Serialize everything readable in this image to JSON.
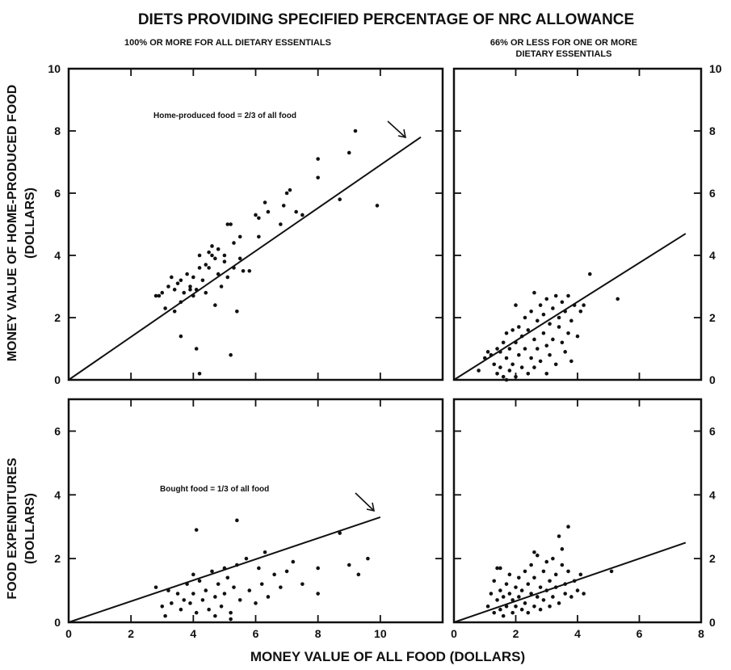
{
  "chart_data": {
    "type": "scatter",
    "title": "DIETS PROVIDING SPECIFIED PERCENTAGE OF NRC ALLOWANCE",
    "column_titles": [
      "100% OR MORE FOR ALL DIETARY ESSENTIALS",
      "66% OR LESS FOR ONE OR MORE DIETARY ESSENTIALS"
    ],
    "xlabel": "MONEY VALUE OF ALL FOOD (DOLLARS)",
    "row_ylabels": [
      [
        "MONEY VALUE OF HOME-PRODUCED FOOD",
        "(DOLLARS)"
      ],
      [
        "FOOD EXPENDITURES",
        "(DOLLARS)"
      ]
    ],
    "grid": false,
    "panels": [
      {
        "id": "top-left",
        "xlim": [
          0,
          12
        ],
        "ylim": [
          0,
          10
        ],
        "x_ticks": [
          0,
          2,
          4,
          6,
          8,
          10
        ],
        "y_ticks": [
          0,
          2,
          4,
          6,
          8,
          10
        ],
        "y_tick_labels": [
          "0",
          "2",
          "4",
          "6",
          "8",
          "10"
        ],
        "line": {
          "x": [
            0,
            11.3
          ],
          "y": [
            0,
            7.8
          ]
        },
        "annotation": "Home-produced food = 2/3 of all food",
        "points": [
          [
            2.9,
            2.7
          ],
          [
            3.0,
            2.8
          ],
          [
            3.1,
            2.3
          ],
          [
            3.2,
            3.0
          ],
          [
            3.3,
            3.3
          ],
          [
            3.4,
            2.9
          ],
          [
            3.5,
            3.1
          ],
          [
            3.6,
            2.5
          ],
          [
            3.6,
            3.2
          ],
          [
            3.7,
            2.8
          ],
          [
            3.8,
            3.4
          ],
          [
            3.9,
            3.0
          ],
          [
            4.0,
            2.7
          ],
          [
            4.0,
            3.3
          ],
          [
            4.1,
            2.9
          ],
          [
            4.2,
            3.6
          ],
          [
            4.3,
            3.2
          ],
          [
            4.4,
            2.8
          ],
          [
            4.4,
            3.7
          ],
          [
            4.5,
            4.1
          ],
          [
            4.6,
            4.3
          ],
          [
            4.7,
            3.9
          ],
          [
            4.8,
            4.2
          ],
          [
            4.8,
            3.4
          ],
          [
            4.9,
            3.0
          ],
          [
            5.0,
            3.8
          ],
          [
            5.0,
            4.0
          ],
          [
            5.1,
            3.3
          ],
          [
            5.2,
            5.0
          ],
          [
            5.3,
            3.6
          ],
          [
            5.3,
            4.4
          ],
          [
            5.4,
            2.2
          ],
          [
            5.5,
            3.9
          ],
          [
            5.5,
            4.6
          ],
          [
            5.6,
            3.5
          ],
          [
            5.1,
            5.0
          ],
          [
            6.0,
            5.3
          ],
          [
            6.1,
            4.6
          ],
          [
            6.1,
            5.2
          ],
          [
            6.3,
            5.7
          ],
          [
            6.4,
            5.4
          ],
          [
            6.8,
            5.0
          ],
          [
            6.9,
            5.6
          ],
          [
            7.0,
            6.0
          ],
          [
            7.1,
            6.1
          ],
          [
            7.3,
            5.4
          ],
          [
            7.5,
            5.3
          ],
          [
            8.0,
            6.5
          ],
          [
            8.0,
            7.1
          ],
          [
            8.7,
            5.8
          ],
          [
            9.0,
            7.3
          ],
          [
            9.2,
            8.0
          ],
          [
            9.9,
            5.6
          ],
          [
            3.6,
            1.4
          ],
          [
            4.1,
            1.0
          ],
          [
            4.2,
            0.2
          ],
          [
            5.2,
            0.8
          ],
          [
            4.7,
            2.4
          ],
          [
            3.4,
            2.2
          ],
          [
            2.8,
            2.7
          ],
          [
            4.5,
            3.6
          ],
          [
            4.2,
            4.0
          ],
          [
            4.6,
            4.0
          ],
          [
            3.9,
            2.9
          ],
          [
            5.8,
            3.5
          ]
        ]
      },
      {
        "id": "top-right",
        "xlim": [
          0,
          8
        ],
        "ylim": [
          0,
          10
        ],
        "x_ticks": [
          0,
          2,
          4,
          6,
          8
        ],
        "y_ticks": [
          0,
          2,
          4,
          6,
          8,
          10
        ],
        "y_tick_labels": [
          "0",
          "2",
          "4",
          "6",
          "8",
          "10"
        ],
        "line": {
          "x": [
            0,
            7.5
          ],
          "y": [
            0,
            4.7
          ]
        },
        "points": [
          [
            0.8,
            0.3
          ],
          [
            1.2,
            0.8
          ],
          [
            1.3,
            0.5
          ],
          [
            1.4,
            0.2
          ],
          [
            1.5,
            0.9
          ],
          [
            1.5,
            0.4
          ],
          [
            1.6,
            0.1
          ],
          [
            1.6,
            1.2
          ],
          [
            1.7,
            0.7
          ],
          [
            1.7,
            1.5
          ],
          [
            1.8,
            0.3
          ],
          [
            1.8,
            1.0
          ],
          [
            1.9,
            1.6
          ],
          [
            1.9,
            0.5
          ],
          [
            2.0,
            0.1
          ],
          [
            2.0,
            1.2
          ],
          [
            2.1,
            0.8
          ],
          [
            2.1,
            1.7
          ],
          [
            2.2,
            0.4
          ],
          [
            2.2,
            1.4
          ],
          [
            2.3,
            2.0
          ],
          [
            2.3,
            1.0
          ],
          [
            2.4,
            0.2
          ],
          [
            2.4,
            1.6
          ],
          [
            2.5,
            0.7
          ],
          [
            2.5,
            2.2
          ],
          [
            2.6,
            1.3
          ],
          [
            2.6,
            0.4
          ],
          [
            2.7,
            1.9
          ],
          [
            2.7,
            1.0
          ],
          [
            2.8,
            2.4
          ],
          [
            2.8,
            0.6
          ],
          [
            2.9,
            1.5
          ],
          [
            2.9,
            2.1
          ],
          [
            3.0,
            1.1
          ],
          [
            3.0,
            2.6
          ],
          [
            3.1,
            0.8
          ],
          [
            3.1,
            1.8
          ],
          [
            3.2,
            2.3
          ],
          [
            3.2,
            1.3
          ],
          [
            3.3,
            2.7
          ],
          [
            3.3,
            0.5
          ],
          [
            3.4,
            1.7
          ],
          [
            3.4,
            2.0
          ],
          [
            3.5,
            1.2
          ],
          [
            3.5,
            2.5
          ],
          [
            3.6,
            0.9
          ],
          [
            3.6,
            2.2
          ],
          [
            3.7,
            1.5
          ],
          [
            3.7,
            2.7
          ],
          [
            3.8,
            0.6
          ],
          [
            3.8,
            1.9
          ],
          [
            3.9,
            2.4
          ],
          [
            4.0,
            1.4
          ],
          [
            4.1,
            2.2
          ],
          [
            4.2,
            2.4
          ],
          [
            4.4,
            3.4
          ],
          [
            5.3,
            2.6
          ],
          [
            1.0,
            0.7
          ],
          [
            1.1,
            0.9
          ],
          [
            1.4,
            1.0
          ],
          [
            2.0,
            2.4
          ],
          [
            2.6,
            2.8
          ],
          [
            3.0,
            0.2
          ],
          [
            1.7,
            0.0
          ]
        ]
      },
      {
        "id": "bottom-left",
        "xlim": [
          0,
          12
        ],
        "ylim": [
          0,
          7
        ],
        "x_ticks": [
          0,
          2,
          4,
          6,
          8,
          10
        ],
        "x_tick_labels": [
          "0",
          "2",
          "4",
          "6",
          "8",
          "10"
        ],
        "y_ticks": [
          0,
          2,
          4,
          6
        ],
        "y_tick_labels": [
          "0",
          "2",
          "4",
          "6"
        ],
        "line": {
          "x": [
            0,
            10
          ],
          "y": [
            0,
            3.3
          ]
        },
        "annotation": "Bought food = 1/3 of all food",
        "points": [
          [
            2.8,
            1.1
          ],
          [
            3.0,
            0.5
          ],
          [
            3.2,
            1.0
          ],
          [
            3.3,
            0.6
          ],
          [
            3.5,
            0.9
          ],
          [
            3.6,
            0.4
          ],
          [
            3.7,
            0.7
          ],
          [
            3.8,
            1.2
          ],
          [
            3.9,
            0.6
          ],
          [
            4.0,
            1.5
          ],
          [
            4.0,
            0.9
          ],
          [
            4.1,
            0.3
          ],
          [
            4.2,
            1.3
          ],
          [
            4.3,
            0.7
          ],
          [
            4.4,
            1.0
          ],
          [
            4.5,
            0.4
          ],
          [
            4.6,
            1.6
          ],
          [
            4.7,
            0.8
          ],
          [
            4.8,
            1.2
          ],
          [
            4.9,
            0.5
          ],
          [
            5.0,
            1.7
          ],
          [
            5.0,
            0.9
          ],
          [
            5.1,
            1.4
          ],
          [
            5.2,
            0.3
          ],
          [
            5.3,
            1.1
          ],
          [
            5.4,
            1.8
          ],
          [
            5.5,
            0.7
          ],
          [
            5.7,
            2.0
          ],
          [
            5.8,
            1.0
          ],
          [
            6.0,
            0.6
          ],
          [
            6.1,
            1.7
          ],
          [
            6.2,
            1.2
          ],
          [
            6.4,
            0.8
          ],
          [
            6.6,
            1.5
          ],
          [
            6.8,
            1.1
          ],
          [
            7.0,
            1.6
          ],
          [
            7.2,
            1.9
          ],
          [
            7.5,
            1.2
          ],
          [
            8.0,
            1.7
          ],
          [
            8.0,
            0.9
          ],
          [
            8.7,
            2.8
          ],
          [
            9.0,
            1.8
          ],
          [
            9.3,
            1.5
          ],
          [
            9.6,
            2.0
          ],
          [
            4.1,
            2.9
          ],
          [
            5.4,
            3.2
          ],
          [
            6.3,
            2.2
          ],
          [
            3.1,
            0.2
          ],
          [
            5.2,
            0.1
          ],
          [
            4.7,
            0.2
          ]
        ]
      },
      {
        "id": "bottom-right",
        "xlim": [
          0,
          8
        ],
        "ylim": [
          0,
          7
        ],
        "x_ticks": [
          0,
          2,
          4,
          6,
          8
        ],
        "x_tick_labels": [
          "0",
          "2",
          "4",
          "6",
          "8"
        ],
        "y_ticks": [
          0,
          2,
          4,
          6
        ],
        "y_tick_labels": [
          "0",
          "2",
          "4",
          "6"
        ],
        "line": {
          "x": [
            0,
            7.5
          ],
          "y": [
            0,
            2.5
          ]
        },
        "points": [
          [
            1.1,
            0.5
          ],
          [
            1.2,
            0.9
          ],
          [
            1.3,
            1.3
          ],
          [
            1.3,
            0.3
          ],
          [
            1.4,
            0.7
          ],
          [
            1.4,
            1.7
          ],
          [
            1.5,
            0.4
          ],
          [
            1.5,
            1.0
          ],
          [
            1.6,
            0.2
          ],
          [
            1.6,
            0.8
          ],
          [
            1.7,
            1.2
          ],
          [
            1.7,
            0.5
          ],
          [
            1.8,
            0.9
          ],
          [
            1.8,
            1.5
          ],
          [
            1.9,
            0.3
          ],
          [
            1.9,
            0.7
          ],
          [
            2.0,
            1.1
          ],
          [
            2.0,
            0.5
          ],
          [
            2.1,
            1.4
          ],
          [
            2.1,
            0.8
          ],
          [
            2.2,
            0.4
          ],
          [
            2.2,
            1.0
          ],
          [
            2.3,
            1.6
          ],
          [
            2.3,
            0.6
          ],
          [
            2.4,
            1.2
          ],
          [
            2.4,
            0.3
          ],
          [
            2.5,
            0.9
          ],
          [
            2.5,
            1.8
          ],
          [
            2.6,
            0.5
          ],
          [
            2.6,
            1.4
          ],
          [
            2.7,
            2.1
          ],
          [
            2.7,
            0.8
          ],
          [
            2.8,
            1.1
          ],
          [
            2.8,
            0.4
          ],
          [
            2.9,
            1.6
          ],
          [
            2.9,
            0.7
          ],
          [
            3.0,
            1.9
          ],
          [
            3.0,
            1.0
          ],
          [
            3.1,
            0.5
          ],
          [
            3.1,
            1.3
          ],
          [
            3.2,
            2.0
          ],
          [
            3.2,
            0.8
          ],
          [
            3.3,
            1.5
          ],
          [
            3.3,
            1.1
          ],
          [
            3.4,
            2.7
          ],
          [
            3.4,
            0.6
          ],
          [
            3.5,
            1.8
          ],
          [
            3.5,
            2.3
          ],
          [
            3.6,
            1.2
          ],
          [
            3.6,
            0.9
          ],
          [
            3.7,
            3.0
          ],
          [
            3.7,
            1.6
          ],
          [
            3.8,
            0.8
          ],
          [
            3.9,
            1.3
          ],
          [
            4.0,
            1.0
          ],
          [
            4.1,
            1.5
          ],
          [
            4.2,
            0.9
          ],
          [
            5.1,
            1.6
          ],
          [
            1.5,
            1.7
          ],
          [
            2.6,
            2.2
          ]
        ]
      }
    ]
  }
}
